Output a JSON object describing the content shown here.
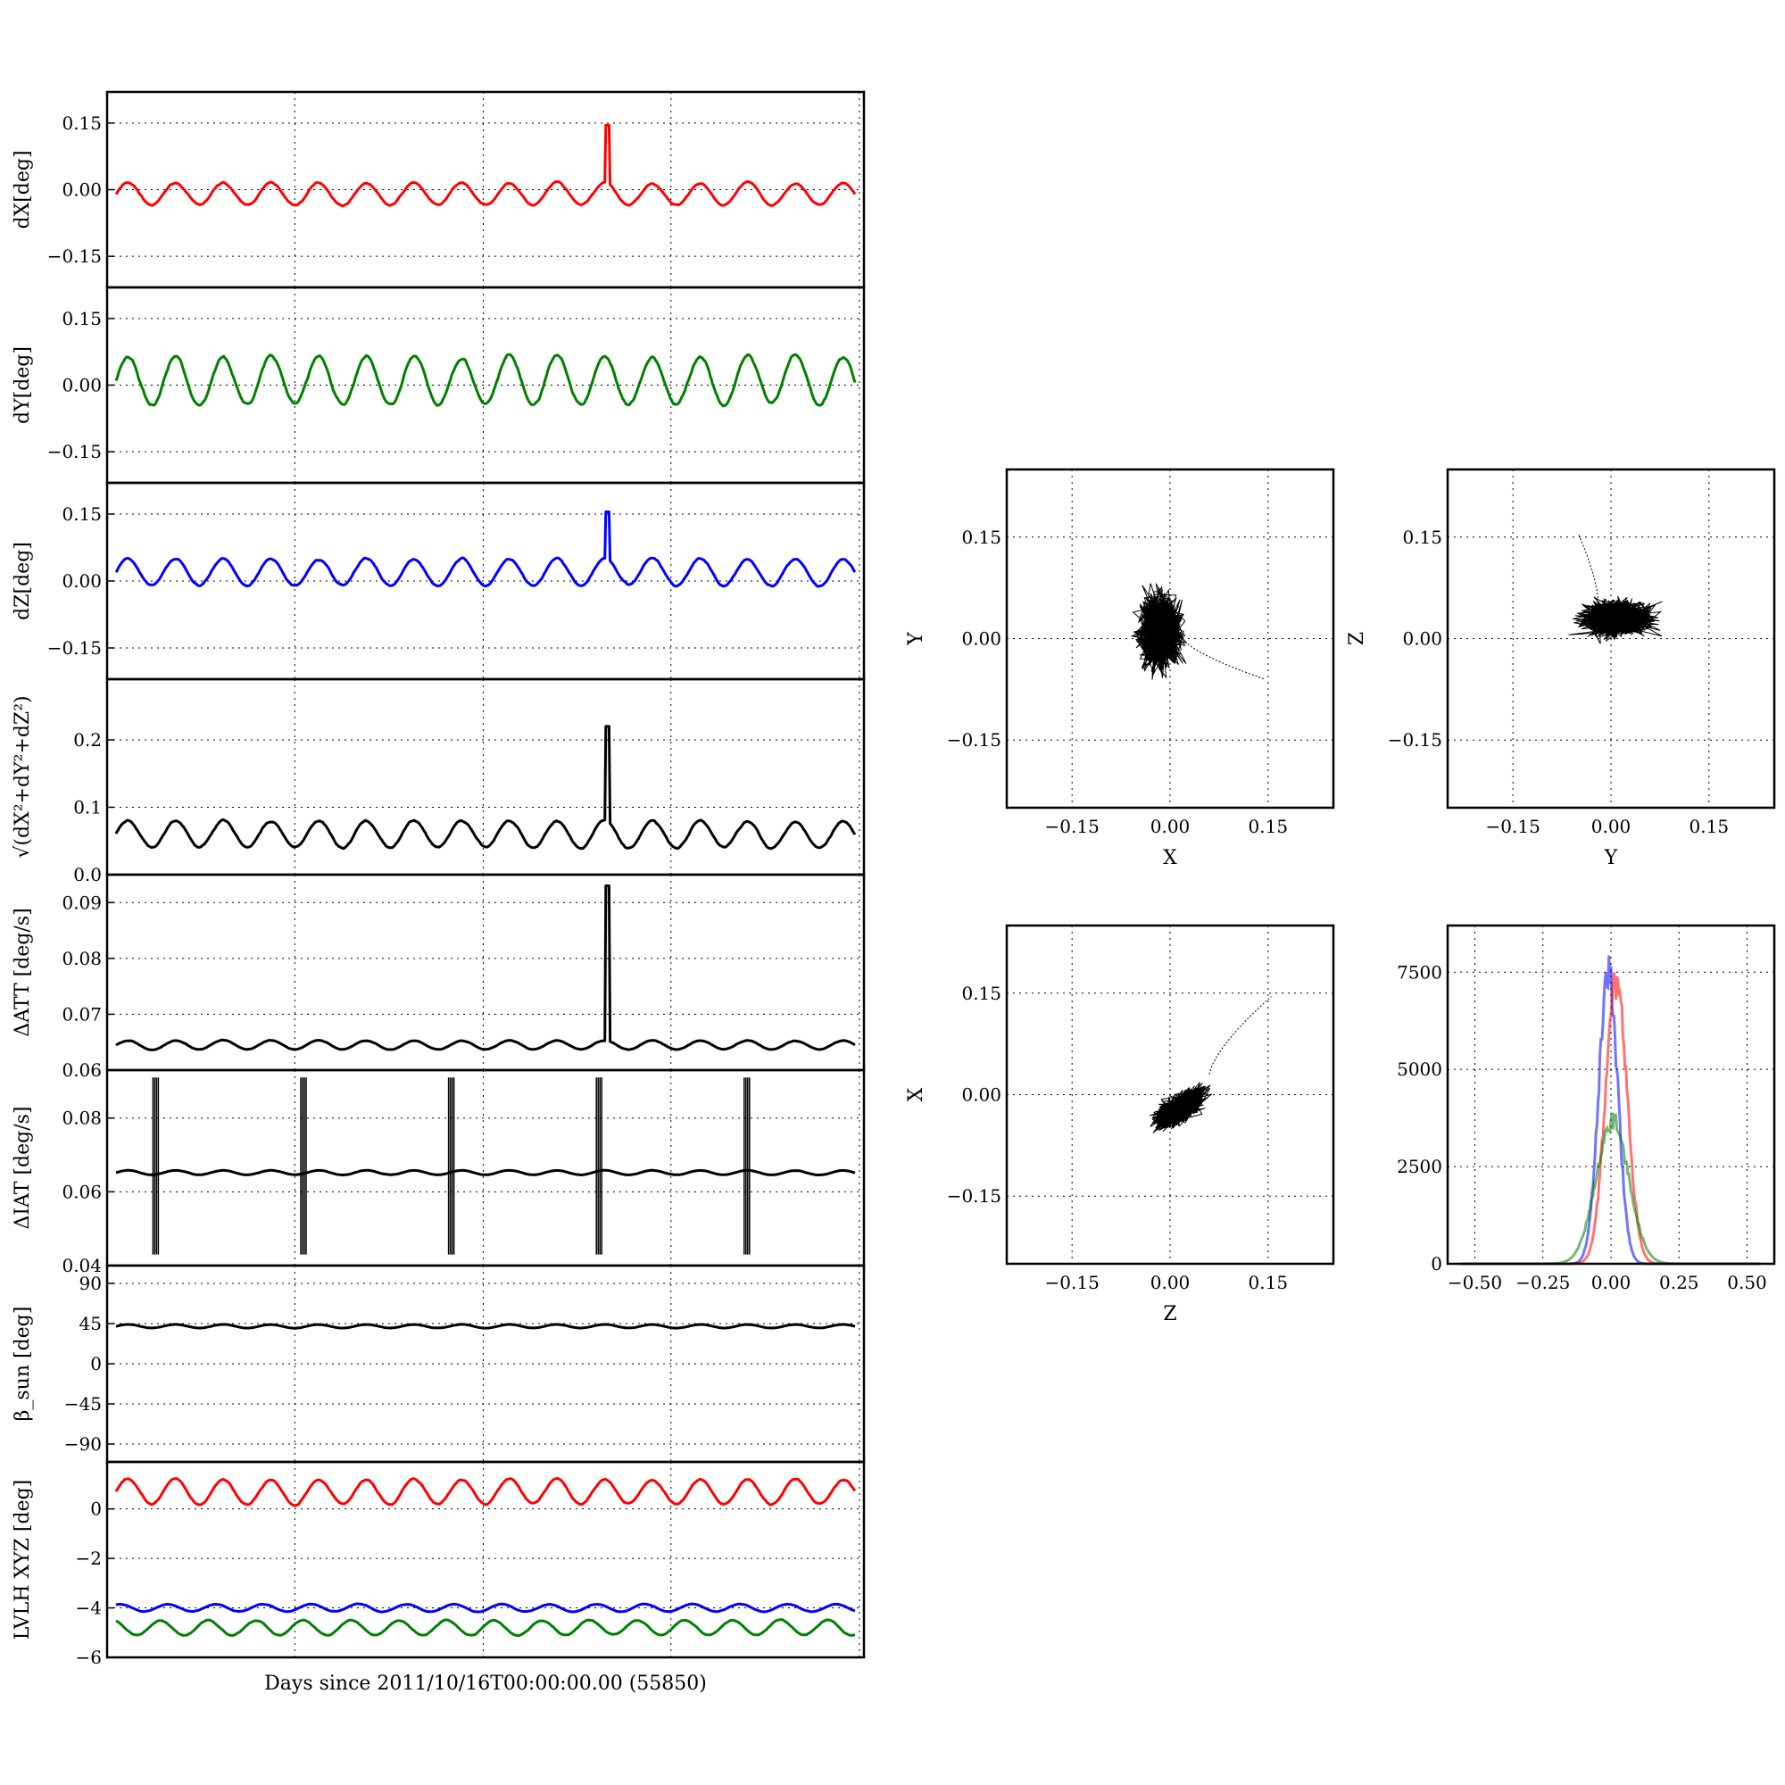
{
  "xlabel": "Days since 2011/10/16T00:00:00.00 (55850)",
  "chart_data": [
    {
      "type": "line",
      "ylabel": "dX[deg]",
      "ylim": [
        -0.22,
        0.22
      ],
      "yticks": [
        0.15,
        0.0,
        -0.15
      ],
      "ytick_labels": [
        "0.15",
        "0.00",
        "−0.15"
      ],
      "series": [
        {
          "color": "#ff0000",
          "base": -0.01,
          "amp": 0.025,
          "spike_at": 0.665,
          "spike_value": 0.145
        }
      ]
    },
    {
      "type": "line",
      "ylabel": "dY[deg]",
      "ylim": [
        -0.22,
        0.22
      ],
      "yticks": [
        0.15,
        0.0,
        -0.15
      ],
      "ytick_labels": [
        "0.15",
        "0.00",
        "−0.15"
      ],
      "series": [
        {
          "color": "#008000",
          "base": 0.01,
          "amp": 0.055,
          "spike_at": null,
          "spike_value": null
        }
      ]
    },
    {
      "type": "line",
      "ylabel": "dZ[deg]",
      "ylim": [
        -0.22,
        0.22
      ],
      "yticks": [
        0.15,
        0.0,
        -0.15
      ],
      "ytick_labels": [
        "0.15",
        "0.00",
        "−0.15"
      ],
      "series": [
        {
          "color": "#0000ff",
          "base": 0.02,
          "amp": 0.03,
          "spike_at": 0.665,
          "spike_value": 0.155
        }
      ]
    },
    {
      "type": "line",
      "ylabel": "√(dX²+dY²+dZ²)",
      "ylim": [
        0.0,
        0.29
      ],
      "yticks": [
        0.2,
        0.1,
        0.0
      ],
      "ytick_labels": [
        "0.2",
        "0.1",
        "0.0"
      ],
      "series": [
        {
          "color": "#000000",
          "base": 0.06,
          "amp": 0.02,
          "spike_at": 0.665,
          "spike_value": 0.22
        }
      ]
    },
    {
      "type": "line",
      "ylabel": "ΔATT [deg/s]",
      "ylim": [
        0.06,
        0.095
      ],
      "yticks": [
        0.09,
        0.08,
        0.07,
        0.06
      ],
      "ytick_labels": [
        "0.09",
        "0.08",
        "0.07",
        "0.06"
      ],
      "series": [
        {
          "color": "#000000",
          "base": 0.0645,
          "amp": 0.0008,
          "spike_at": 0.665,
          "spike_value": 0.093
        }
      ]
    },
    {
      "type": "line",
      "ylabel": "ΔIAT [deg/s]",
      "ylim": [
        0.04,
        0.093
      ],
      "yticks": [
        0.08,
        0.06,
        0.04
      ],
      "ytick_labels": [
        "0.08",
        "0.06",
        "0.04"
      ],
      "series": [
        {
          "color": "#000000",
          "base": 0.0652,
          "amp": 0.0006,
          "spike_at": null,
          "spike_value": null
        }
      ]
    },
    {
      "type": "line",
      "ylabel": "β_sun [deg]",
      "ylim": [
        -110,
        110
      ],
      "yticks": [
        90,
        45,
        0,
        -45,
        -90
      ],
      "ytick_labels": [
        "90",
        "45",
        "0",
        "−45",
        "−90"
      ],
      "series": [
        {
          "color": "#000000",
          "base": 42,
          "amp": 2,
          "spike_at": null,
          "spike_value": null
        }
      ]
    },
    {
      "type": "line",
      "ylabel": "LVLH XYZ [deg]",
      "ylim": [
        -6,
        1.9
      ],
      "yticks": [
        0,
        -2,
        -4,
        -6
      ],
      "ytick_labels": [
        "0",
        "−2",
        "−4",
        "−6"
      ],
      "series": [
        {
          "color": "#ff0000",
          "base": 0.7,
          "amp": 0.5,
          "spike_at": null,
          "spike_value": null
        },
        {
          "color": "#0000ff",
          "base": -4.0,
          "amp": 0.15,
          "spike_at": null,
          "spike_value": null
        },
        {
          "color": "#008000",
          "base": -4.8,
          "amp": 0.3,
          "spike_at": null,
          "spike_value": null
        }
      ]
    },
    {
      "type": "scatter",
      "xlabel": "X",
      "ylabel": "Y",
      "xlim": [
        -0.25,
        0.25
      ],
      "ylim": [
        -0.25,
        0.25
      ],
      "xticks": [
        -0.15,
        0.0,
        0.15
      ],
      "xtick_labels": [
        "−0.15",
        "0.00",
        "0.15"
      ],
      "yticks": [
        0.15,
        0.0,
        -0.15
      ],
      "ytick_labels": [
        "0.15",
        "0.00",
        "−0.15"
      ],
      "cloud_center": [
        -0.015,
        0.01
      ],
      "cloud_spread": [
        0.03,
        0.05
      ],
      "tail_from": [
        0.02,
        0.0
      ],
      "tail_to": [
        0.145,
        -0.06
      ]
    },
    {
      "type": "scatter",
      "xlabel": "Y",
      "ylabel": "Z",
      "xlim": [
        -0.25,
        0.25
      ],
      "ylim": [
        -0.25,
        0.25
      ],
      "xticks": [
        -0.15,
        0.0,
        0.15
      ],
      "xtick_labels": [
        "−0.15",
        "0.00",
        "0.15"
      ],
      "yticks": [
        0.15,
        0.0,
        -0.15
      ],
      "ytick_labels": [
        "0.15",
        "0.00",
        "−0.15"
      ],
      "cloud_center": [
        0.01,
        0.03
      ],
      "cloud_spread": [
        0.05,
        0.025
      ],
      "tail_from": [
        -0.02,
        0.06
      ],
      "tail_to": [
        -0.05,
        0.155
      ]
    },
    {
      "type": "scatter",
      "xlabel": "Z",
      "ylabel": "X",
      "xlim": [
        -0.25,
        0.25
      ],
      "ylim": [
        -0.25,
        0.25
      ],
      "xticks": [
        -0.15,
        0.0,
        0.15
      ],
      "xtick_labels": [
        "−0.15",
        "0.00",
        "0.15"
      ],
      "yticks": [
        0.15,
        0.0,
        -0.15
      ],
      "ytick_labels": [
        "0.15",
        "0.00",
        "−0.15"
      ],
      "cloud_center": [
        0.015,
        -0.02
      ],
      "cloud_spread": [
        0.035,
        0.02
      ],
      "tail_from": [
        0.06,
        0.03
      ],
      "tail_to": [
        0.155,
        0.145
      ]
    },
    {
      "type": "histogram",
      "xlim": [
        -0.6,
        0.6
      ],
      "ylim": [
        0,
        8700
      ],
      "xticks": [
        -0.5,
        -0.25,
        0.0,
        0.25,
        0.5
      ],
      "xtick_labels": [
        "−0.50",
        "−0.25",
        "0.00",
        "0.25",
        "0.50"
      ],
      "yticks": [
        7500,
        5000,
        2500,
        0
      ],
      "ytick_labels": [
        "7500",
        "5000",
        "2500",
        "0"
      ],
      "series": [
        {
          "color": "#0000ff",
          "center": -0.01,
          "width": 0.035,
          "peak": 8000
        },
        {
          "color": "#ff0000",
          "center": 0.02,
          "width": 0.04,
          "peak": 7700
        },
        {
          "color": "#008000",
          "center": 0.005,
          "width": 0.06,
          "peak": 3900
        }
      ]
    }
  ]
}
